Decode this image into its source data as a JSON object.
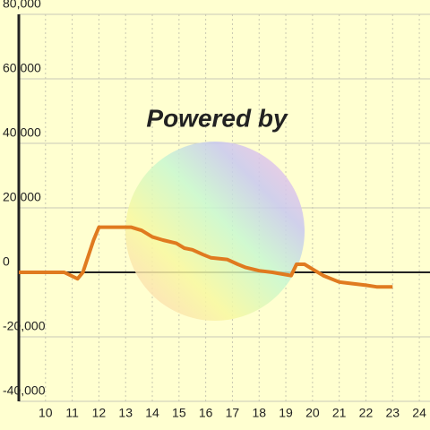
{
  "chart_data": {
    "type": "line",
    "watermark": "Powered by",
    "x": [
      9.0,
      10.7,
      11.2,
      11.4,
      11.8,
      12.0,
      13.2,
      13.6,
      14.0,
      14.4,
      14.9,
      15.2,
      15.5,
      15.9,
      16.2,
      16.8,
      17.2,
      17.5,
      18.0,
      18.5,
      19.2,
      19.4,
      19.7,
      20.0,
      20.4,
      21.0,
      21.5,
      22.0,
      22.4,
      23.0
    ],
    "series": [
      {
        "color": "#e07a1f",
        "values": [
          0,
          0,
          -2000,
          0,
          10000,
          14000,
          14000,
          13000,
          11000,
          10000,
          9000,
          7500,
          7000,
          5500,
          4500,
          4000,
          2500,
          1500,
          500,
          0,
          -1000,
          2500,
          2500,
          1000,
          -1000,
          -3000,
          -3500,
          -4000,
          -4500,
          -4500
        ]
      }
    ],
    "xlim": [
      9,
      24.4
    ],
    "xticks": [
      10,
      11,
      12,
      13,
      14,
      15,
      16,
      17,
      18,
      19,
      20,
      21,
      22,
      23,
      24
    ],
    "ylim": [
      -40000,
      80000
    ],
    "yticks": [
      {
        "value": -40000,
        "label": "-40,000"
      },
      {
        "value": -20000,
        "label": "-20,000"
      },
      0,
      {
        "value": 20000,
        "label": "20,000"
      },
      {
        "value": 40000,
        "label": "40,000"
      },
      {
        "value": 60000,
        "label": "60,000"
      },
      {
        "value": 80000,
        "label": "80,000"
      }
    ],
    "grid": true
  }
}
